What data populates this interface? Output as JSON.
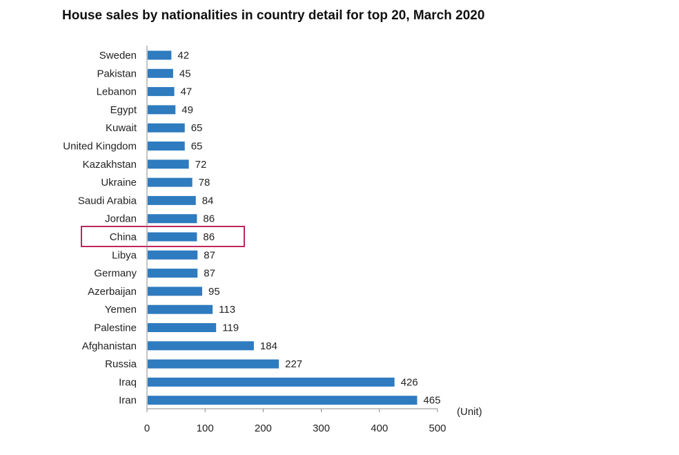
{
  "chart_data": {
    "type": "bar",
    "orientation": "horizontal",
    "title": "House sales by nationalities in country detail for top 20, March 2020",
    "unit_label": "(Unit)",
    "categories": [
      "Sweden",
      "Pakistan",
      "Lebanon",
      "Egypt",
      "Kuwait",
      "United Kingdom",
      "Kazakhstan",
      "Ukraine",
      "Saudi Arabia",
      "Jordan",
      "China",
      "Libya",
      "Germany",
      "Azerbaijan",
      "Yemen",
      "Palestine",
      "Afghanistan",
      "Russia",
      "Iraq",
      "Iran"
    ],
    "values": [
      42,
      45,
      47,
      49,
      65,
      65,
      72,
      78,
      84,
      86,
      86,
      87,
      87,
      95,
      113,
      119,
      184,
      227,
      426,
      465
    ],
    "xlim": [
      0,
      500
    ],
    "xticks": [
      0,
      100,
      200,
      300,
      400,
      500
    ],
    "bar_color": "#2e7bbf",
    "highlight": {
      "category": "China",
      "color": "#c0245c"
    },
    "grid": false,
    "legend": "none"
  }
}
